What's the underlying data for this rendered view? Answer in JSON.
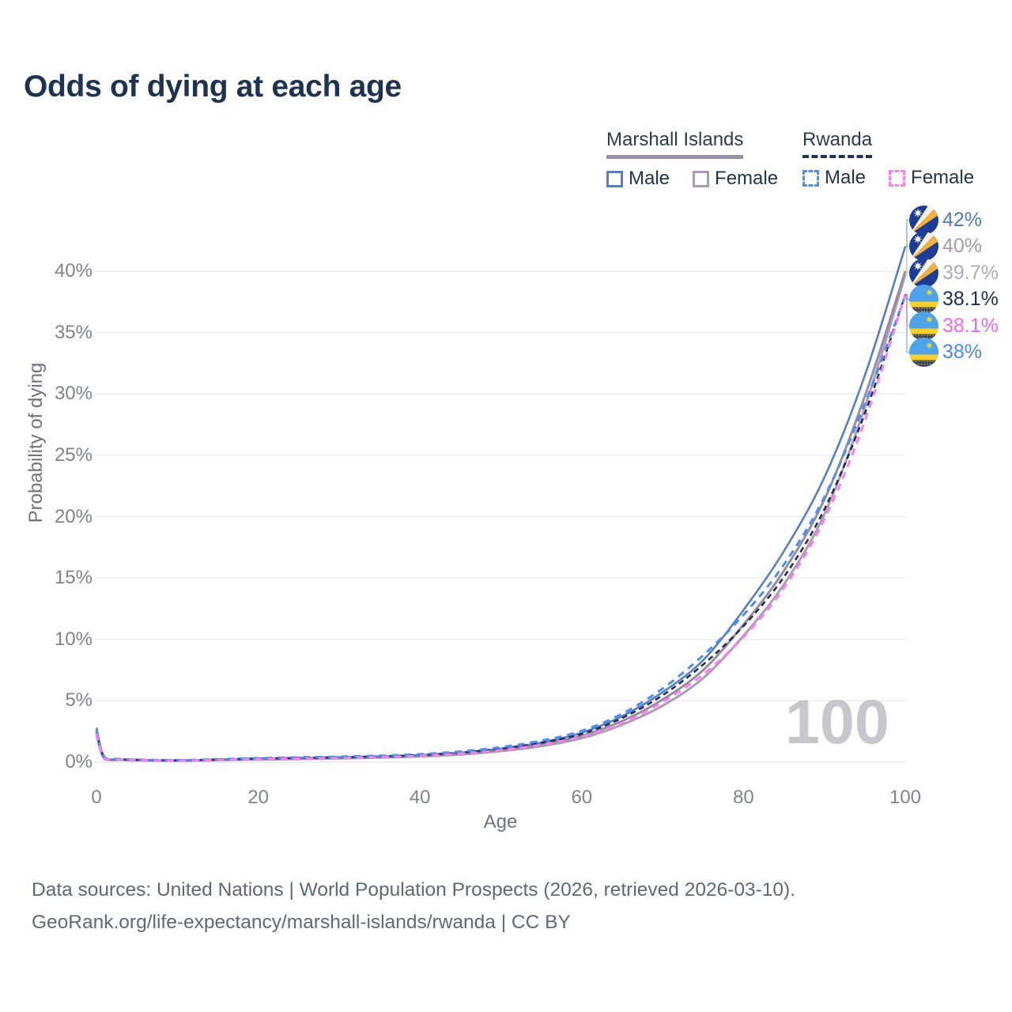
{
  "title": "Odds of dying at each age",
  "legend": {
    "groups": [
      {
        "name": "Marshall Islands",
        "line_style": "solid",
        "underline_color": "#9a8fa4",
        "items": [
          {
            "label": "Male",
            "color": "#567ec6"
          },
          {
            "label": "Female",
            "color": "#a89bab"
          }
        ]
      },
      {
        "name": "Rwanda",
        "line_style": "dashed",
        "underline_color": "#1d3557",
        "items": [
          {
            "label": "Male",
            "color": "#4e8df2"
          },
          {
            "label": "Female",
            "color": "#f97ef3"
          }
        ]
      }
    ]
  },
  "watermark": "100",
  "footer": {
    "line1": "Data sources: United Nations | World Population Prospects (2026, retrieved 2026-03-10).",
    "line2": "GeoRank.org/life-expectancy/marshall-islands/rwanda | CC BY"
  },
  "chart_data": {
    "type": "line",
    "title": "Odds of dying at each age",
    "xlabel": "Age",
    "ylabel": "Probability of dying",
    "xlim": [
      0,
      100
    ],
    "ylim_percent": [
      0,
      44
    ],
    "xticks": [
      0,
      20,
      40,
      60,
      80,
      100
    ],
    "ytick_labels": [
      "0%",
      "5%",
      "10%",
      "15%",
      "20%",
      "25%",
      "30%",
      "35%",
      "40%"
    ],
    "grid": true,
    "legend_position": "top-right",
    "ages": [
      0,
      1,
      3,
      5,
      10,
      15,
      20,
      25,
      30,
      35,
      40,
      45,
      50,
      55,
      60,
      65,
      70,
      75,
      80,
      85,
      90,
      95,
      100
    ],
    "series": [
      {
        "id": "marshall-islands-female",
        "country": "Marshall Islands",
        "sex": "Female",
        "flag": "marshall-islands-flag",
        "color": "#ab9eb0",
        "dash": null,
        "width": 3,
        "values": [
          2.2,
          0.26,
          0.18,
          0.14,
          0.11,
          0.16,
          0.21,
          0.25,
          0.3,
          0.37,
          0.46,
          0.62,
          0.9,
          1.3,
          1.95,
          3.05,
          4.6,
          6.85,
          10.3,
          14.5,
          20.2,
          28.9,
          39.7
        ],
        "end": {
          "text": "39.7%",
          "color": "#b2a8bc",
          "row": 2
        }
      },
      {
        "id": "marshall-islands-all",
        "country": "Marshall Islands",
        "sex": "Both",
        "flag": "marshall-islands-flag",
        "color": "#978ba0",
        "dash": null,
        "width": 3,
        "values": [
          2.5,
          0.3,
          0.21,
          0.16,
          0.13,
          0.19,
          0.26,
          0.3,
          0.35,
          0.42,
          0.52,
          0.7,
          1.0,
          1.45,
          2.15,
          3.35,
          5.1,
          7.5,
          11.2,
          15.6,
          21.4,
          29.8,
          40.0
        ],
        "end": {
          "text": "40%",
          "color": "#a59bad",
          "row": 1
        }
      },
      {
        "id": "marshall-islands-male",
        "country": "Marshall Islands",
        "sex": "Male",
        "flag": "marshall-islands-flag",
        "color": "#567ec6",
        "dash": null,
        "width": 2.6,
        "values": [
          2.8,
          0.35,
          0.24,
          0.18,
          0.15,
          0.22,
          0.3,
          0.35,
          0.4,
          0.47,
          0.58,
          0.78,
          1.1,
          1.6,
          2.4,
          3.75,
          5.7,
          8.3,
          12.4,
          17.2,
          23.2,
          31.5,
          42.0
        ],
        "end": {
          "text": "42%",
          "color": "#4e79c8",
          "row": 0
        }
      },
      {
        "id": "rwanda-all",
        "country": "Rwanda",
        "sex": "Both",
        "flag": "rwanda-flag",
        "color": "#22304e",
        "dash": "7 5",
        "width": 2.6,
        "values": [
          2.5,
          0.38,
          0.24,
          0.19,
          0.15,
          0.21,
          0.29,
          0.34,
          0.4,
          0.47,
          0.58,
          0.78,
          1.1,
          1.58,
          2.3,
          3.6,
          5.45,
          7.95,
          11.1,
          15.1,
          20.6,
          28.4,
          38.1
        ],
        "end": {
          "text": "38.1%",
          "color": "#232f4e",
          "row": 3
        }
      },
      {
        "id": "rwanda-male",
        "country": "Rwanda",
        "sex": "Male",
        "flag": "rwanda-flag",
        "color": "#4e8df2",
        "dash": "9 7",
        "width": 3,
        "values": [
          2.65,
          0.42,
          0.27,
          0.21,
          0.17,
          0.24,
          0.33,
          0.39,
          0.45,
          0.53,
          0.65,
          0.87,
          1.22,
          1.75,
          2.55,
          3.95,
          6.0,
          8.7,
          12.0,
          16.1,
          21.6,
          29.2,
          38.0
        ],
        "end": {
          "text": "38%",
          "color": "#4c86f0",
          "row": 5
        }
      },
      {
        "id": "rwanda-female",
        "country": "Rwanda",
        "sex": "Female",
        "flag": "rwanda-flag",
        "color": "#f97ef3",
        "dash": "9 7",
        "width": 3,
        "values": [
          2.35,
          0.34,
          0.22,
          0.17,
          0.13,
          0.18,
          0.25,
          0.29,
          0.34,
          0.41,
          0.51,
          0.69,
          0.98,
          1.42,
          2.08,
          3.2,
          4.9,
          7.15,
          10.2,
          14.2,
          19.8,
          27.8,
          38.1
        ],
        "end": {
          "text": "38.1%",
          "color": "#f566ee",
          "row": 4
        }
      }
    ]
  }
}
